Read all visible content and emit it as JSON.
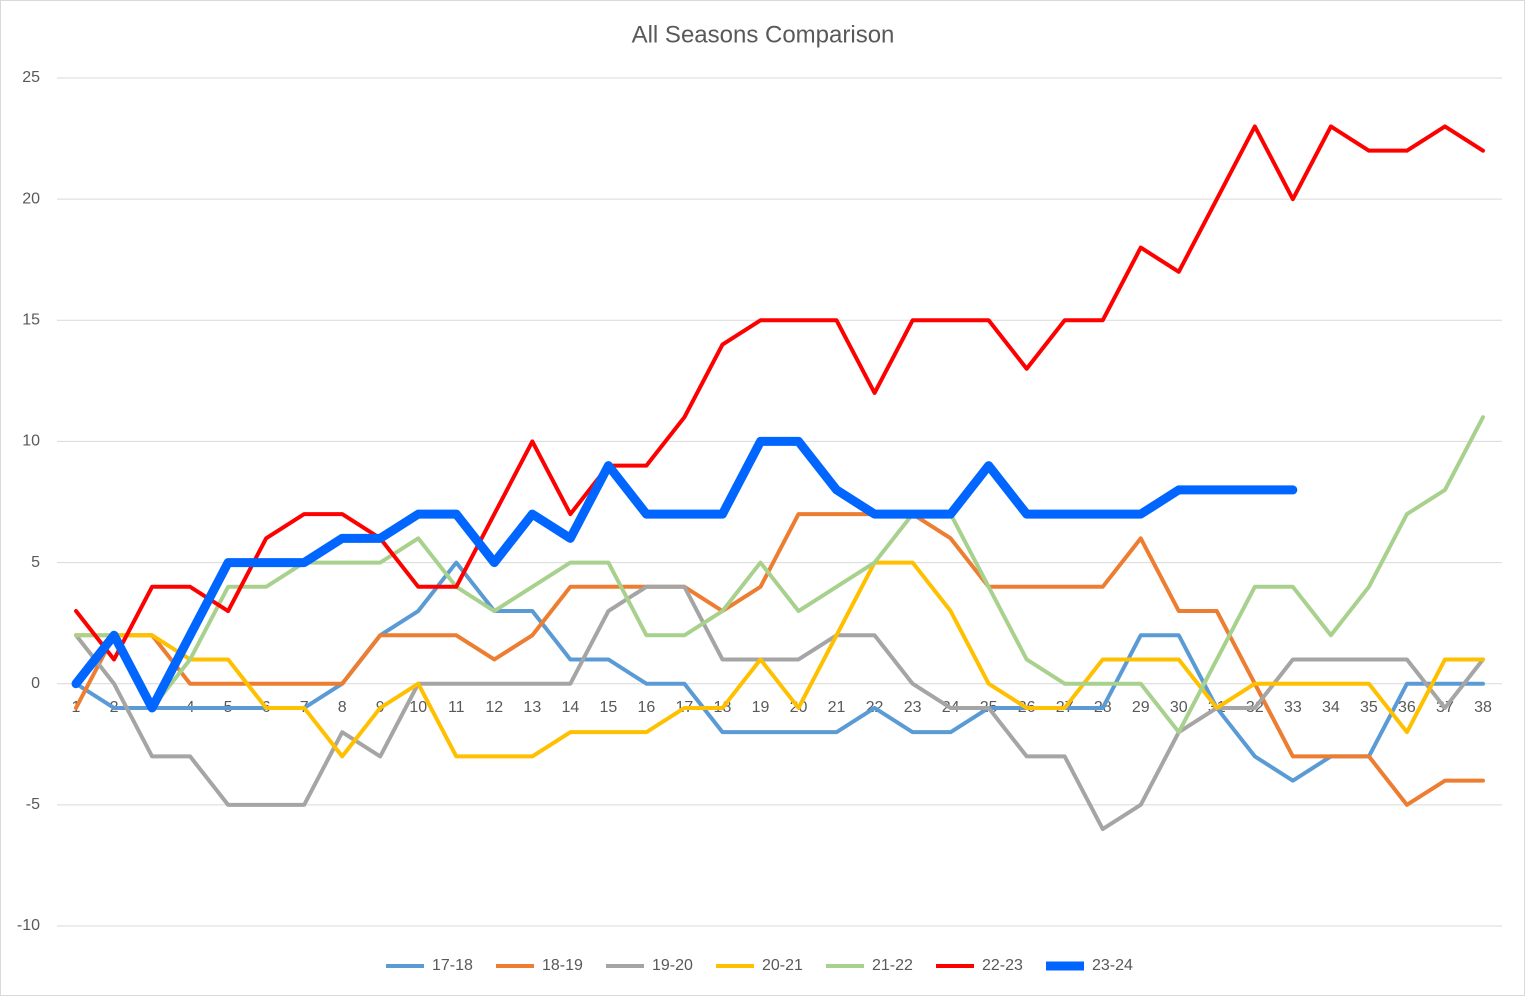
{
  "chart_data": {
    "type": "line",
    "title": "All Seasons Comparison",
    "categories": [
      "1",
      "2",
      "3",
      "4",
      "5",
      "6",
      "7",
      "8",
      "9",
      "10",
      "11",
      "12",
      "13",
      "14",
      "15",
      "16",
      "17",
      "18",
      "19",
      "20",
      "21",
      "22",
      "23",
      "24",
      "25",
      "26",
      "27",
      "28",
      "29",
      "30",
      "31",
      "32",
      "33",
      "34",
      "35",
      "36",
      "37",
      "38"
    ],
    "ylim": [
      -10,
      25
    ],
    "yticks": [
      -10,
      -5,
      0,
      5,
      10,
      15,
      20,
      25
    ],
    "grid": true,
    "legend": "bottom",
    "series": [
      {
        "name": "17-18",
        "color": "#5b9bd5",
        "values": [
          0,
          -1,
          -1,
          -1,
          -1,
          -1,
          -1,
          0,
          2,
          3,
          5,
          3,
          3,
          1,
          1,
          0,
          0,
          -2,
          -2,
          -2,
          -2,
          -1,
          -2,
          -2,
          -1,
          -1,
          -1,
          -1,
          2,
          2,
          -1,
          -3,
          -4,
          -3,
          -3,
          0,
          0,
          0
        ]
      },
      {
        "name": "18-19",
        "color": "#ed7d31",
        "values": [
          -1,
          2,
          2,
          0,
          0,
          0,
          0,
          0,
          2,
          2,
          2,
          1,
          2,
          4,
          4,
          4,
          4,
          3,
          4,
          7,
          7,
          7,
          7,
          6,
          4,
          4,
          4,
          4,
          6,
          3,
          3,
          0,
          -3,
          -3,
          -3,
          -5,
          -4,
          -4
        ]
      },
      {
        "name": "19-20",
        "color": "#a5a5a5",
        "values": [
          2,
          0,
          -3,
          -3,
          -5,
          -5,
          -5,
          -2,
          -3,
          0,
          0,
          0,
          0,
          0,
          3,
          4,
          4,
          1,
          1,
          1,
          2,
          2,
          0,
          -1,
          -1,
          -3,
          -3,
          -6,
          -5,
          -2,
          -1,
          -1,
          1,
          1,
          1,
          1,
          -1,
          1
        ]
      },
      {
        "name": "20-21",
        "color": "#ffc000",
        "values": [
          2,
          2,
          2,
          1,
          1,
          -1,
          -1,
          -3,
          -1,
          0,
          -3,
          -3,
          -3,
          -2,
          -2,
          -2,
          -1,
          -1,
          1,
          -1,
          2,
          5,
          5,
          3,
          0,
          -1,
          -1,
          1,
          1,
          1,
          -1,
          0,
          0,
          0,
          0,
          -2,
          1,
          1
        ]
      },
      {
        "name": "21-22",
        "color": "#a9d18e",
        "values": [
          2,
          2,
          -1,
          1,
          4,
          4,
          5,
          5,
          5,
          6,
          4,
          3,
          4,
          5,
          5,
          2,
          2,
          3,
          5,
          3,
          4,
          5,
          7,
          7,
          4,
          1,
          0,
          0,
          0,
          -2,
          1,
          4,
          4,
          2,
          4,
          7,
          8,
          11
        ]
      },
      {
        "name": "22-23",
        "color": "#ff0000",
        "values": [
          3,
          1,
          4,
          4,
          3,
          6,
          7,
          7,
          6,
          4,
          4,
          7,
          10,
          7,
          9,
          9,
          11,
          14,
          15,
          15,
          15,
          12,
          15,
          15,
          15,
          13,
          15,
          15,
          18,
          17,
          20,
          23,
          20,
          23,
          22,
          22,
          23,
          22
        ]
      },
      {
        "name": "23-24",
        "color": "#0066ff",
        "width": 9,
        "values": [
          0,
          2,
          -1,
          2,
          5,
          5,
          5,
          6,
          6,
          7,
          7,
          5,
          7,
          6,
          9,
          7,
          7,
          7,
          10,
          10,
          8,
          7,
          7,
          7,
          9,
          7,
          7,
          7,
          7,
          8,
          8,
          8,
          8,
          null,
          null,
          null,
          null,
          null
        ]
      }
    ]
  }
}
